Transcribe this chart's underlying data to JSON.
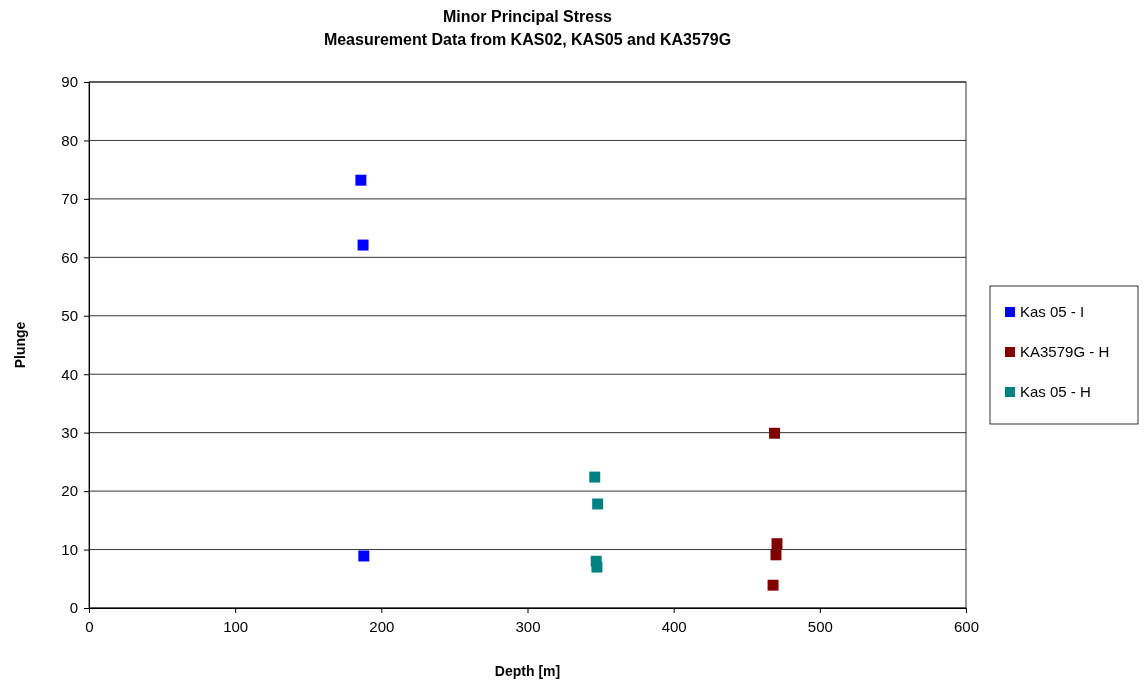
{
  "chart_data": {
    "type": "scatter",
    "title": "Minor Principal Stress",
    "subtitle": "Measurement Data from KAS02, KAS05 and KA3579G",
    "xlabel": "Depth  [m]",
    "ylabel": "Plunge",
    "xlim": [
      0,
      600
    ],
    "xticks": [
      0,
      100,
      200,
      300,
      400,
      500,
      600
    ],
    "ylim": [
      0,
      90
    ],
    "yticks": [
      0,
      10,
      20,
      30,
      40,
      50,
      60,
      70,
      80,
      90
    ],
    "grid": "y",
    "legend": "right",
    "marker": "square",
    "series": [
      {
        "name": "Kas 05 - I",
        "color": "#0000ff",
        "x": [
          186,
          187.5,
          188
        ],
        "values": [
          73.2,
          62.1,
          8.9
        ]
      },
      {
        "name": "KA3579G - H",
        "color": "#800000",
        "x": [
          469,
          470.7,
          470,
          468
        ],
        "values": [
          29.9,
          11,
          9.1,
          3.9
        ]
      },
      {
        "name": "Kas 05 - H",
        "color": "#008080",
        "x": [
          346,
          348,
          347,
          347.5
        ],
        "values": [
          22.4,
          17.8,
          8.0,
          7.0
        ]
      }
    ]
  }
}
